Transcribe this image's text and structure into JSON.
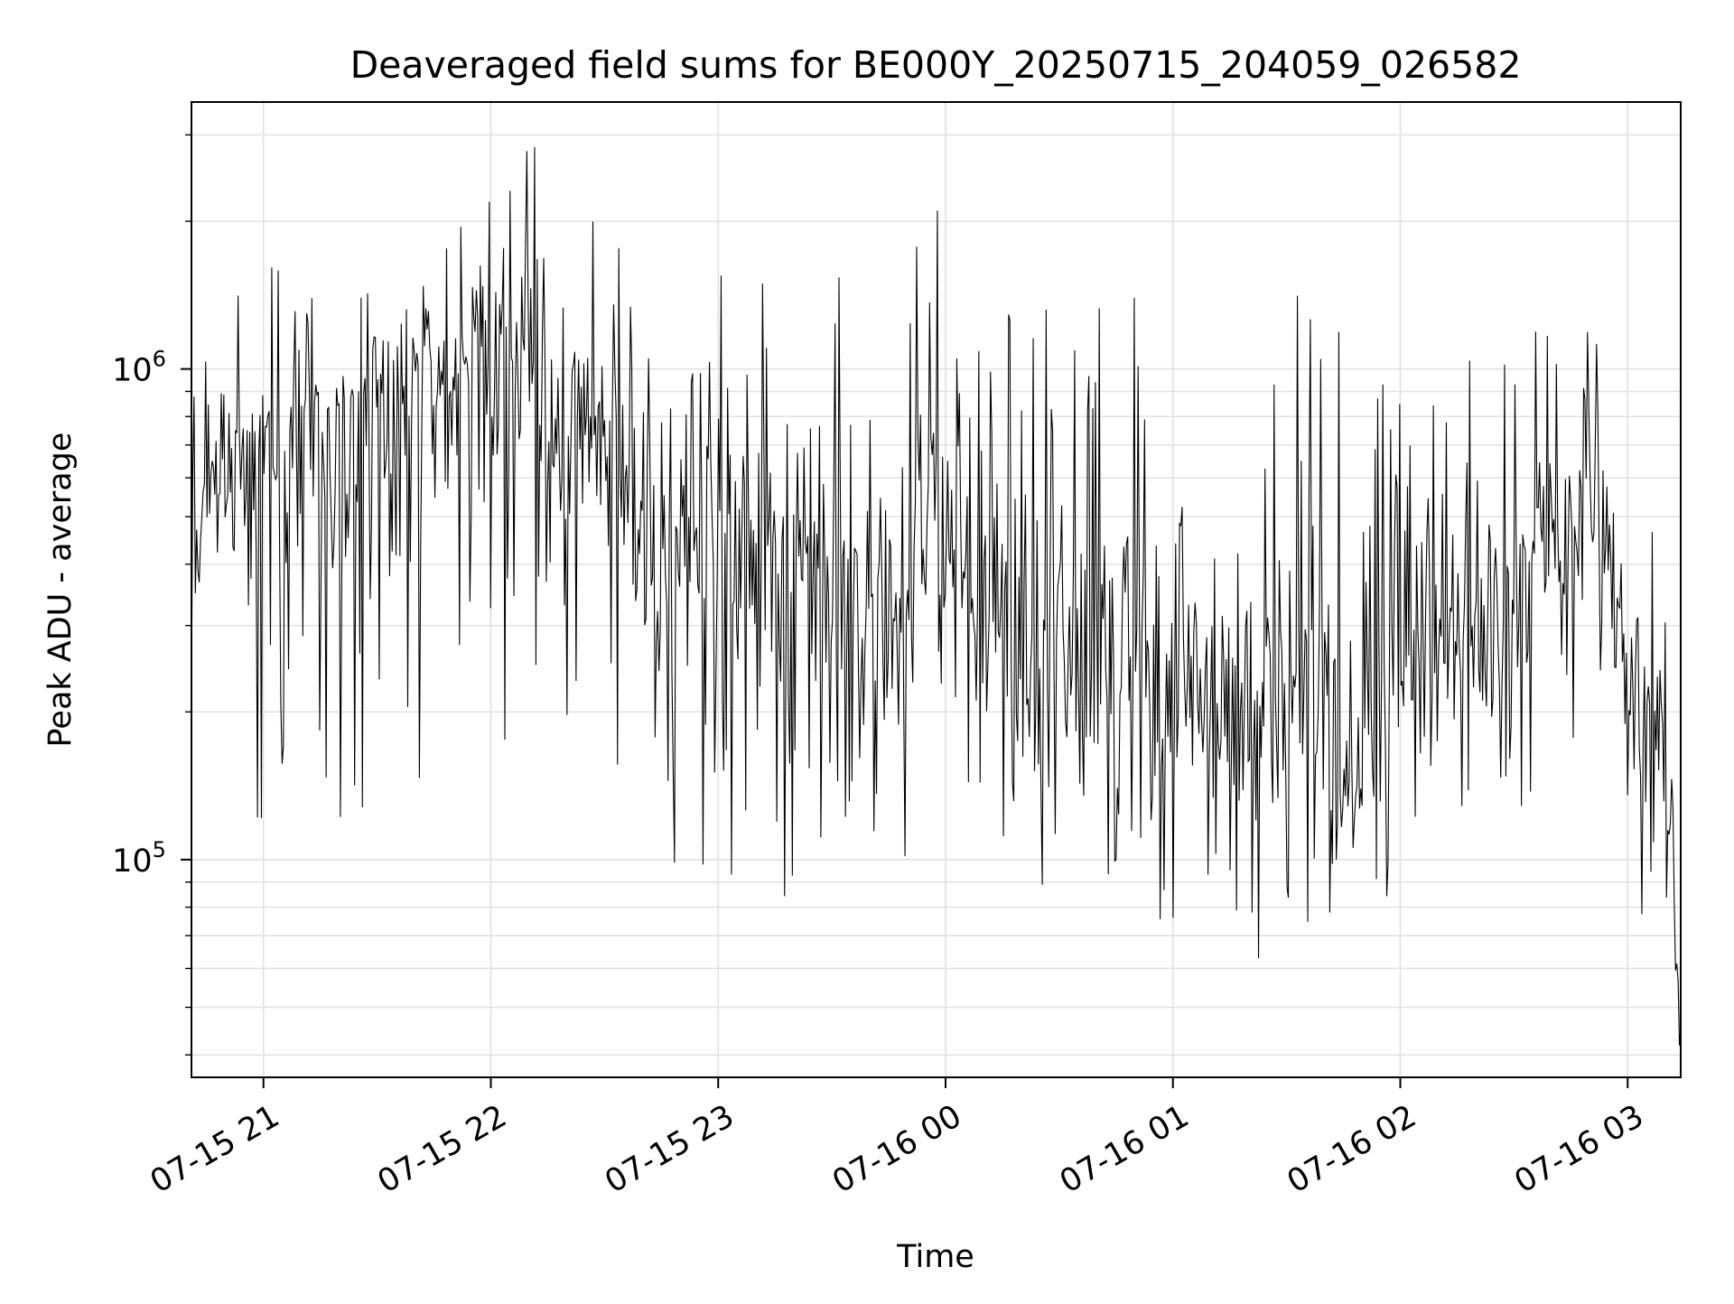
{
  "chart_data": {
    "type": "line",
    "title": "Deaveraged field sums for BE000Y_20250715_204059_026582",
    "xlabel": "Time",
    "ylabel": "Peak ADU - average",
    "y_scale": "log",
    "ylim": [
      36000,
      3500000
    ],
    "xlim": [
      "2025-07-15 20:41",
      "2025-07-16 03:14"
    ],
    "grid": true,
    "line_color": "#000000",
    "x_ticks": [
      {
        "value": "2025-07-15 21:00",
        "label": "07-15 21"
      },
      {
        "value": "2025-07-15 22:00",
        "label": "07-15 22"
      },
      {
        "value": "2025-07-15 23:00",
        "label": "07-15 23"
      },
      {
        "value": "2025-07-16 00:00",
        "label": "07-16 00"
      },
      {
        "value": "2025-07-16 01:00",
        "label": "07-16 01"
      },
      {
        "value": "2025-07-16 02:00",
        "label": "07-16 02"
      },
      {
        "value": "2025-07-16 03:00",
        "label": "07-16 03"
      }
    ],
    "y_ticks": [
      {
        "value": 100000,
        "label_base": "10",
        "label_exp": "5"
      },
      {
        "value": 1000000,
        "label_base": "10",
        "label_exp": "6"
      }
    ],
    "x": [
      "2025-07-15 20:41",
      "2025-07-15 20:50",
      "2025-07-15 21:00",
      "2025-07-15 21:10",
      "2025-07-15 21:20",
      "2025-07-15 21:30",
      "2025-07-15 21:40",
      "2025-07-15 21:50",
      "2025-07-15 22:00",
      "2025-07-15 22:10",
      "2025-07-15 22:20",
      "2025-07-15 22:30",
      "2025-07-15 22:40",
      "2025-07-15 22:50",
      "2025-07-15 23:00",
      "2025-07-15 23:10",
      "2025-07-15 23:20",
      "2025-07-15 23:30",
      "2025-07-15 23:40",
      "2025-07-15 23:50",
      "2025-07-16 00:00",
      "2025-07-16 00:10",
      "2025-07-16 00:20",
      "2025-07-16 00:30",
      "2025-07-16 00:40",
      "2025-07-16 00:50",
      "2025-07-16 01:00",
      "2025-07-16 01:10",
      "2025-07-16 01:20",
      "2025-07-16 01:30",
      "2025-07-16 01:40",
      "2025-07-16 01:50",
      "2025-07-16 02:00",
      "2025-07-16 02:10",
      "2025-07-16 02:20",
      "2025-07-16 02:30",
      "2025-07-16 02:40",
      "2025-07-16 02:50",
      "2025-07-16 03:00",
      "2025-07-16 03:10",
      "2025-07-16 03:14"
    ],
    "y": [
      550000,
      600000,
      650000,
      700000,
      750000,
      850000,
      950000,
      900000,
      950000,
      900000,
      800000,
      700000,
      500000,
      480000,
      460000,
      450000,
      430000,
      380000,
      350000,
      330000,
      450000,
      400000,
      230000,
      260000,
      240000,
      230000,
      220000,
      200000,
      190000,
      180000,
      160000,
      150000,
      300000,
      250000,
      320000,
      330000,
      420000,
      550000,
      230000,
      170000,
      45000
    ],
    "y_max": [
      1000000,
      1300000,
      2000000,
      1500000,
      1900000,
      2000000,
      2300000,
      2000000,
      2600000,
      3000000,
      2300000,
      2000000,
      1900000,
      1700000,
      1600000,
      1700000,
      1700000,
      1700000,
      1700000,
      1700000,
      2700000,
      1600000,
      1300000,
      1500000,
      1700000,
      1600000,
      1400000,
      1300000,
      1500000,
      1800000,
      1500000,
      1400000,
      1800000,
      1800000,
      1300000,
      1500000,
      1200000,
      1200000,
      900000,
      400000,
      150000
    ],
    "y_min": [
      200000,
      180000,
      110000,
      140000,
      110000,
      115000,
      120000,
      160000,
      190000,
      150000,
      160000,
      200000,
      90000,
      100000,
      62000,
      60000,
      80000,
      85000,
      90000,
      95000,
      170000,
      100000,
      75000,
      65000,
      90000,
      70000,
      75000,
      80000,
      62000,
      55000,
      60000,
      58000,
      90000,
      120000,
      110000,
      105000,
      140000,
      200000,
      62000,
      62000,
      38000
    ]
  }
}
